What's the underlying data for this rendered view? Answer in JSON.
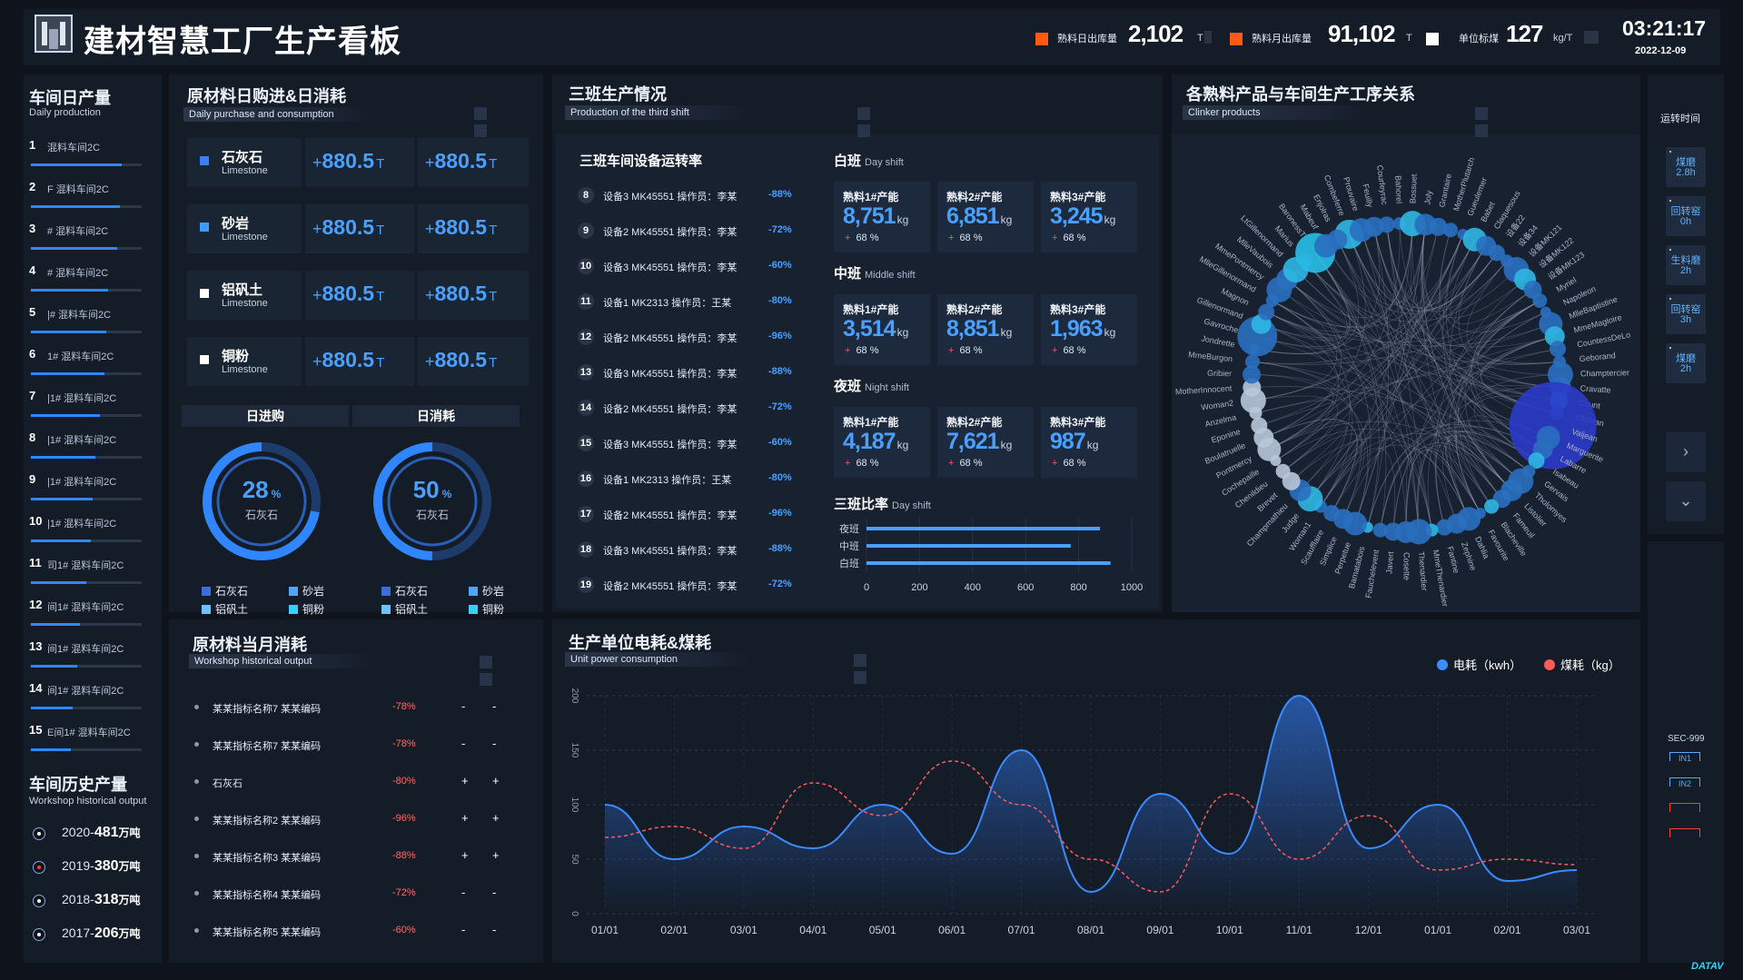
{
  "header": {
    "title": "建材智慧工厂生产看板",
    "kpis": [
      {
        "label": "熟料日出库量",
        "value": "2,102",
        "unit": "T",
        "color": "#ff5a14"
      },
      {
        "label": "熟料月出库量",
        "value": "91,102",
        "unit": "T",
        "color": "#ff5a14"
      },
      {
        "label": "单位标煤",
        "value": "127",
        "unit": "kg/T",
        "color": "#ffffff"
      }
    ],
    "time": "03:21:17",
    "date": "2022-12-09"
  },
  "daily_production": {
    "title": "车间日产量",
    "subtitle": "Daily production",
    "rows": [
      {
        "num": "1",
        "name": "混料车间2C",
        "progress": 0.82
      },
      {
        "num": "2",
        "name": "F 混料车间2C",
        "progress": 0.8
      },
      {
        "num": "3",
        "name": "# 混料车间2C",
        "progress": 0.78
      },
      {
        "num": "4",
        "name": "# 混料车间2C",
        "progress": 0.7
      },
      {
        "num": "5",
        "name": "|# 混料车间2C",
        "progress": 0.68
      },
      {
        "num": "6",
        "name": "1# 混料车间2C",
        "progress": 0.66
      },
      {
        "num": "7",
        "name": "|1# 混料车间2C",
        "progress": 0.62
      },
      {
        "num": "8",
        "name": "|1# 混料车间2C",
        "progress": 0.58
      },
      {
        "num": "9",
        "name": "|1# 混料车间2C",
        "progress": 0.56
      },
      {
        "num": "10",
        "name": "|1# 混料车间2C",
        "progress": 0.54
      },
      {
        "num": "11",
        "name": "司1# 混料车间2C",
        "progress": 0.5
      },
      {
        "num": "12",
        "name": "间1# 混料车间2C",
        "progress": 0.44
      },
      {
        "num": "13",
        "name": "间1# 混料车间2C",
        "progress": 0.42
      },
      {
        "num": "14",
        "name": "间1# 混料车间2C",
        "progress": 0.38
      },
      {
        "num": "15",
        "name": "E间1# 混料车间2C",
        "progress": 0.36
      }
    ]
  },
  "history_output": {
    "title": "车间历史产量",
    "subtitle": "Workshop historical output",
    "rows": [
      {
        "year": "2020-",
        "value": "481",
        "unit": "万吨",
        "dot": "#ffffff"
      },
      {
        "year": "2019-",
        "value": "380",
        "unit": "万吨",
        "dot": "#ff3b3b"
      },
      {
        "year": "2018-",
        "value": "318",
        "unit": "万吨",
        "dot": "#ffffff"
      },
      {
        "year": "2017-",
        "value": "206",
        "unit": "万吨",
        "dot": "#ffffff"
      }
    ]
  },
  "materials": {
    "title": "原材料日购进&日消耗",
    "subtitle": "Daily purchase and consumption",
    "rows": [
      {
        "name": "石灰石",
        "en": "Limestone",
        "color": "#3d7cff",
        "purchase": "880.5",
        "consume": "880.5",
        "unit": "T"
      },
      {
        "name": "砂岩",
        "en": "Limestone",
        "color": "#3d9bff",
        "purchase": "880.5",
        "consume": "880.5",
        "unit": "T"
      },
      {
        "name": "铝矾土",
        "en": "Limestone",
        "color": "#ffffff",
        "purchase": "880.5",
        "consume": "880.5",
        "unit": "T"
      },
      {
        "name": "铜粉",
        "en": "Limestone",
        "color": "#ffffff",
        "purchase": "880.5",
        "consume": "880.5",
        "unit": "T"
      }
    ],
    "donut_tabs": [
      "日进购",
      "日消耗"
    ],
    "donuts": [
      {
        "value": "28",
        "unit": "%",
        "label": "石灰石",
        "fraction": 0.28
      },
      {
        "value": "50",
        "unit": "%",
        "label": "石灰石",
        "fraction": 0.5
      }
    ],
    "legend": [
      {
        "name": "石灰石",
        "color": "#3d6ddc"
      },
      {
        "name": "砂岩",
        "color": "#4ea6ff"
      },
      {
        "name": "铝矾土",
        "color": "#6fc0ff"
      },
      {
        "name": "铜粉",
        "color": "#35d0f5"
      }
    ]
  },
  "third_shift": {
    "title": "三班生产情况",
    "subtitle": "Production of the third shift",
    "device_title": "三班车间设备运转率",
    "devices": [
      {
        "num": "8",
        "desc": "设备3 MK45551 操作员：李某",
        "pct": "-88%"
      },
      {
        "num": "9",
        "desc": "设备2 MK45551 操作员：李某",
        "pct": "-72%"
      },
      {
        "num": "10",
        "desc": "设备3 MK45551 操作员：李某",
        "pct": "-60%"
      },
      {
        "num": "11",
        "desc": "设备1 MK2313 操作员：王某",
        "pct": "-80%"
      },
      {
        "num": "12",
        "desc": "设备2 MK45551 操作员：李某",
        "pct": "-96%"
      },
      {
        "num": "13",
        "desc": "设备3 MK45551 操作员：李某",
        "pct": "-88%"
      },
      {
        "num": "14",
        "desc": "设备2 MK45551 操作员：李某",
        "pct": "-72%"
      },
      {
        "num": "15",
        "desc": "设备3 MK45551 操作员：李某",
        "pct": "-60%"
      },
      {
        "num": "16",
        "desc": "设备1 MK2313 操作员：王某",
        "pct": "-80%"
      },
      {
        "num": "17",
        "desc": "设备2 MK45551 操作员：李某",
        "pct": "-96%"
      },
      {
        "num": "18",
        "desc": "设备3 MK45551 操作员：李某",
        "pct": "-88%"
      },
      {
        "num": "19",
        "desc": "设备2 MK45551 操作员：李某",
        "pct": "-72%"
      }
    ],
    "shifts": [
      {
        "name": "白班",
        "en": "Day shift",
        "boxes": [
          {
            "label": "熟料1#产能",
            "value": "8,751",
            "unit": "kg",
            "pct": "68 %"
          },
          {
            "label": "熟料2#产能",
            "value": "6,851",
            "unit": "kg",
            "pct": "68 %"
          },
          {
            "label": "熟料3#产能",
            "value": "3,245",
            "unit": "kg",
            "pct": "68 %"
          }
        ]
      },
      {
        "name": "中班",
        "en": "Middle shift",
        "boxes": [
          {
            "label": "熟料1#产能",
            "value": "3,514",
            "unit": "kg",
            "pct": "68 %"
          },
          {
            "label": "熟料2#产能",
            "value": "8,851",
            "unit": "kg",
            "pct": "68 %"
          },
          {
            "label": "熟料3#产能",
            "value": "1,963",
            "unit": "kg",
            "pct": "68 %"
          }
        ]
      },
      {
        "name": "夜班",
        "en": "Night shift",
        "boxes": [
          {
            "label": "熟料1#产能",
            "value": "4,187",
            "unit": "kg",
            "pct": "68 %"
          },
          {
            "label": "熟料2#产能",
            "value": "7,621",
            "unit": "kg",
            "pct": "68 %"
          },
          {
            "label": "熟料3#产能",
            "value": "987",
            "unit": "kg",
            "pct": "68 %"
          }
        ]
      }
    ],
    "ratio_title": "三班比率",
    "ratio_sub": "Day shift",
    "ratio_chart": {
      "type": "bar",
      "categories": [
        "夜班",
        "中班",
        "白班"
      ],
      "values": [
        880,
        770,
        920
      ],
      "xlim": [
        0,
        1000
      ],
      "ticks": [
        "0",
        "200",
        "400",
        "600",
        "800",
        "1000"
      ]
    }
  },
  "clinker": {
    "title": "各熟料产品与车间生产工序关系",
    "subtitle": "Clinker products",
    "labels": [
      "Combeferre",
      "Prouvaire",
      "Feuilly",
      "Courfeyrac",
      "Bahorel",
      "Bossuet",
      "Joly",
      "Grantaire",
      "MotherPlutarch",
      "Gueulemer",
      "Babet",
      "Claquesous",
      "设备22",
      "设备34",
      "设备MK121",
      "设备MK122",
      "设备MK123",
      "Myriel",
      "Napoleon",
      "MlleBaptistine",
      "MmeMagloire",
      "CountessDeLo",
      "Geborand",
      "Champtercier",
      "Cravatte",
      "Count",
      "OldMan",
      "Valjean",
      "Marguerite",
      "Labarre",
      "Isabeau",
      "Gervais",
      "Tholomyes",
      "Listolier",
      "Fameuil",
      "Blacheville",
      "Favourite",
      "Dahlia",
      "Zephine",
      "Fantine",
      "MmeThenardier",
      "Thenardier",
      "Cosette",
      "Javert",
      "Fauchelevent",
      "Bamatabois",
      "Perpetue",
      "Simplice",
      "Scaufflaire",
      "Woman1",
      "Judge",
      "Champmathieu",
      "Brevet",
      "Chenildieu",
      "Cochepaille",
      "Pontmercy",
      "Boulatruelle",
      "Eponine",
      "Anzelma",
      "Woman2",
      "MotherInnocent",
      "Gribier",
      "MmeBurgon",
      "Jondrette",
      "Gavroche",
      "Gillenormand",
      "Magnon",
      "MlleGillenormand",
      "MmePontmercy",
      "MlleVaubois",
      "LtGillenormand",
      "Marius",
      "BaronessT",
      "Mabeuf",
      "Enjolras"
    ]
  },
  "monthly": {
    "title": "原材料当月消耗",
    "subtitle": "Workshop historical output",
    "rows": [
      {
        "name": "某某指标名称7 某某编码",
        "pct": "-78%",
        "a": "-",
        "b": "-"
      },
      {
        "name": "某某指标名称7 某某编码",
        "pct": "-78%",
        "a": "-",
        "b": "-"
      },
      {
        "name": "石灰石",
        "pct": "-80%",
        "a": "+",
        "b": "+"
      },
      {
        "name": "某某指标名称2 某某编码",
        "pct": "-96%",
        "a": "+",
        "b": "+"
      },
      {
        "name": "某某指标名称3 某某编码",
        "pct": "-88%",
        "a": "+",
        "b": "+"
      },
      {
        "name": "某某指标名称4 某某编码",
        "pct": "-72%",
        "a": "-",
        "b": "-"
      },
      {
        "name": "某某指标名称5 某某编码",
        "pct": "-60%",
        "a": "-",
        "b": "-"
      }
    ]
  },
  "power": {
    "title": "生产单位电耗&煤耗",
    "subtitle": "Unit power consumption",
    "chart_data": {
      "type": "line",
      "x": [
        "01/01",
        "02/01",
        "03/01",
        "04/01",
        "05/01",
        "06/01",
        "07/01",
        "08/01",
        "09/01",
        "10/01",
        "11/01",
        "12/01",
        "01/01",
        "02/01",
        "03/01"
      ],
      "series": [
        {
          "name": "电耗（kwh）",
          "color": "#3c8bff",
          "values": [
            100,
            50,
            80,
            60,
            100,
            55,
            150,
            20,
            110,
            55,
            200,
            60,
            100,
            30,
            40
          ]
        },
        {
          "name": "煤耗（kg）",
          "color": "#ff5a5a",
          "values": [
            70,
            80,
            60,
            120,
            90,
            140,
            100,
            50,
            20,
            110,
            50,
            90,
            40,
            50,
            45
          ]
        }
      ],
      "ylim": [
        0,
        200
      ],
      "yticks": [
        "0",
        "50",
        "100",
        "150",
        "200"
      ]
    }
  },
  "right_bar": {
    "title": "运转时间",
    "items": [
      {
        "name": "煤磨",
        "value": "2.8h"
      },
      {
        "name": "回转窑",
        "value": "0h"
      },
      {
        "name": "生料磨",
        "value": "2h"
      },
      {
        "name": "回转窑",
        "value": "3h"
      },
      {
        "name": "煤磨",
        "value": "2h"
      }
    ],
    "sec_label": "SEC-999",
    "sec_items": [
      "IN1",
      "IN2"
    ]
  },
  "brand": "DATAV"
}
